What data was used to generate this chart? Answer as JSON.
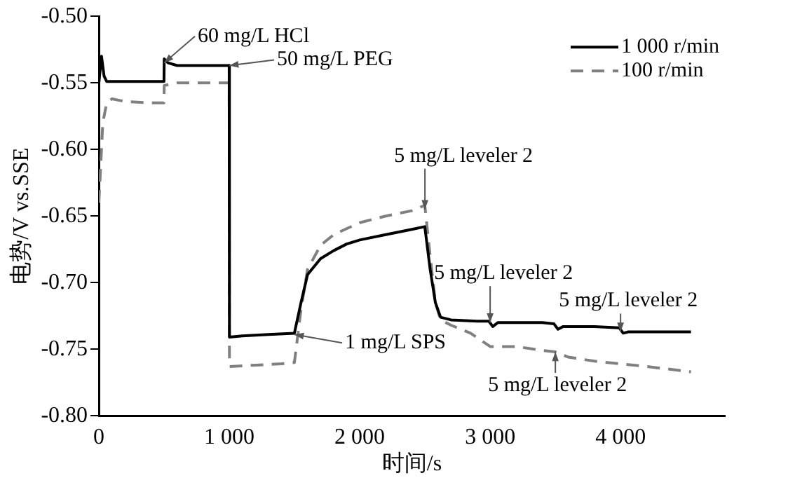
{
  "chart_data": {
    "type": "line",
    "xlabel": "时间/s",
    "ylabel": "电势/V vs.SSE",
    "xlim": [
      0,
      4800
    ],
    "xticks": [
      0,
      {
        "value": 1000,
        "label": "1 000"
      },
      {
        "value": 2000,
        "label": "2 000"
      },
      {
        "value": 3000,
        "label": "3 000"
      },
      {
        "value": 4000,
        "label": "4 000"
      }
    ],
    "ylim": [
      -0.8,
      -0.5
    ],
    "yticks": [
      {
        "value": -0.8,
        "label": "-0.80"
      },
      -0.75,
      {
        "value": -0.7,
        "label": "-0.70"
      },
      -0.65,
      {
        "value": -0.6,
        "label": "-0.60"
      },
      -0.55,
      {
        "value": -0.5,
        "label": "-0.50"
      }
    ],
    "grid": false,
    "legend": "top right",
    "marker": "none",
    "series": [
      {
        "name": "1 000 r/min",
        "color": "#000000",
        "line_style": "solid",
        "x": [
          0,
          20,
          40,
          60,
          80,
          120,
          300,
          499,
          501,
          530,
          600,
          800,
          999,
          1001,
          1100,
          1300,
          1499,
          1550,
          1600,
          1700,
          1800,
          1900,
          2000,
          2200,
          2400,
          2499,
          2540,
          2580,
          2620,
          2700,
          2900,
          2990,
          3020,
          3060,
          3200,
          3400,
          3490,
          3520,
          3560,
          3800,
          3990,
          4020,
          4060,
          4300,
          4540
        ],
        "values": [
          -0.55,
          -0.53,
          -0.545,
          -0.549,
          -0.549,
          -0.549,
          -0.549,
          -0.549,
          -0.532,
          -0.535,
          -0.537,
          -0.537,
          -0.537,
          -0.741,
          -0.74,
          -0.739,
          -0.738,
          -0.715,
          -0.694,
          -0.682,
          -0.676,
          -0.671,
          -0.668,
          -0.664,
          -0.66,
          -0.658,
          -0.69,
          -0.715,
          -0.726,
          -0.728,
          -0.729,
          -0.729,
          -0.733,
          -0.73,
          -0.73,
          -0.73,
          -0.731,
          -0.735,
          -0.733,
          -0.733,
          -0.734,
          -0.738,
          -0.737,
          -0.737,
          -0.737
        ]
      },
      {
        "name": "100 r/min",
        "color": "#808080",
        "line_style": "dashed",
        "x": [
          0,
          30,
          60,
          100,
          200,
          400,
          499,
          501,
          600,
          800,
          999,
          1001,
          1200,
          1400,
          1499,
          1550,
          1600,
          1700,
          1800,
          2000,
          2200,
          2400,
          2499,
          2540,
          2580,
          2620,
          2700,
          2850,
          3000,
          3200,
          3400,
          3500,
          3600,
          3800,
          4000,
          4200,
          4540
        ],
        "values": [
          -0.64,
          -0.58,
          -0.565,
          -0.562,
          -0.564,
          -0.565,
          -0.565,
          -0.552,
          -0.55,
          -0.55,
          -0.55,
          -0.763,
          -0.762,
          -0.761,
          -0.76,
          -0.72,
          -0.69,
          -0.672,
          -0.664,
          -0.655,
          -0.65,
          -0.646,
          -0.642,
          -0.68,
          -0.715,
          -0.728,
          -0.732,
          -0.738,
          -0.748,
          -0.748,
          -0.751,
          -0.752,
          -0.756,
          -0.759,
          -0.761,
          -0.763,
          -0.767
        ]
      }
    ],
    "annotations": [
      {
        "text": "60 mg/L HCl",
        "x": 500,
        "y": -0.535
      },
      {
        "text": "50 mg/L PEG",
        "x": 1000,
        "y": -0.537
      },
      {
        "text": "5 mg/L leveler 2",
        "x": 2500,
        "y": -0.645
      },
      {
        "text": "5 mg/L leveler 2",
        "x": 3000,
        "y": -0.73
      },
      {
        "text": "5 mg/L leveler 2",
        "x": 4000,
        "y": -0.737
      },
      {
        "text": "5 mg/L leveler 2",
        "x": 3500,
        "y": -0.752
      },
      {
        "text": "1 mg/L SPS",
        "x": 1500,
        "y": -0.739
      }
    ]
  }
}
